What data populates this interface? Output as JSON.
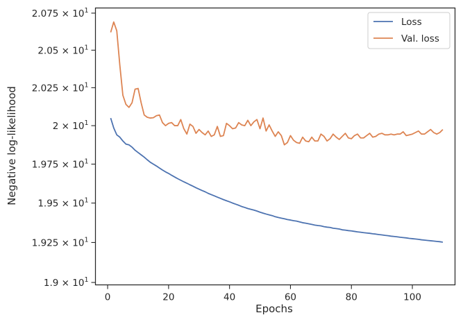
{
  "chart_data": {
    "type": "line",
    "title": "",
    "xlabel": "Epochs",
    "ylabel": "Negative log-likelihood",
    "xlim": [
      -4,
      114
    ],
    "ylim": [
      18.985,
      20.785
    ],
    "y_scale": "log",
    "grid": false,
    "legend_position": "top-right",
    "x_ticks": [
      {
        "value": 0,
        "label": "0"
      },
      {
        "value": 20,
        "label": "20"
      },
      {
        "value": 40,
        "label": "40"
      },
      {
        "value": 60,
        "label": "60"
      },
      {
        "value": 80,
        "label": "80"
      },
      {
        "value": 100,
        "label": "100"
      }
    ],
    "y_ticks": [
      {
        "value": 19.0,
        "mantissa": "1.9",
        "times": "×",
        "base": "10",
        "exponent": "1"
      },
      {
        "value": 19.25,
        "mantissa": "1.925",
        "times": "×",
        "base": "10",
        "exponent": "1"
      },
      {
        "value": 19.5,
        "mantissa": "1.95",
        "times": "×",
        "base": "10",
        "exponent": "1"
      },
      {
        "value": 19.75,
        "mantissa": "1.975",
        "times": "×",
        "base": "10",
        "exponent": "1"
      },
      {
        "value": 20.0,
        "mantissa": "2",
        "times": "×",
        "base": "10",
        "exponent": "1"
      },
      {
        "value": 20.25,
        "mantissa": "2.025",
        "times": "×",
        "base": "10",
        "exponent": "1"
      },
      {
        "value": 20.5,
        "mantissa": "2.05",
        "times": "×",
        "base": "10",
        "exponent": "1"
      },
      {
        "value": 20.75,
        "mantissa": "2.075",
        "times": "×",
        "base": "10",
        "exponent": "1"
      }
    ],
    "series": [
      {
        "name": "Loss",
        "color": "#4c72b0",
        "x": [
          1,
          2,
          3,
          4,
          5,
          6,
          7,
          8,
          9,
          10,
          11,
          12,
          13,
          14,
          15,
          16,
          17,
          18,
          19,
          20,
          21,
          22,
          23,
          24,
          25,
          26,
          27,
          28,
          29,
          30,
          31,
          32,
          33,
          34,
          35,
          36,
          37,
          38,
          39,
          40,
          41,
          42,
          43,
          44,
          45,
          46,
          47,
          48,
          49,
          50,
          51,
          52,
          53,
          54,
          55,
          56,
          57,
          58,
          59,
          60,
          61,
          62,
          63,
          64,
          65,
          66,
          67,
          68,
          69,
          70,
          71,
          72,
          73,
          74,
          75,
          76,
          77,
          78,
          79,
          80,
          81,
          82,
          83,
          84,
          85,
          86,
          87,
          88,
          89,
          90,
          91,
          92,
          93,
          94,
          95,
          96,
          97,
          98,
          99,
          100,
          101,
          102,
          103,
          104,
          105,
          106,
          107,
          108,
          109,
          110
        ],
        "y": [
          20.05,
          19.985,
          19.94,
          19.925,
          19.9,
          19.88,
          19.875,
          19.86,
          19.84,
          19.825,
          19.81,
          19.795,
          19.778,
          19.762,
          19.75,
          19.738,
          19.725,
          19.712,
          19.7,
          19.69,
          19.678,
          19.667,
          19.656,
          19.646,
          19.636,
          19.627,
          19.617,
          19.608,
          19.598,
          19.589,
          19.58,
          19.572,
          19.562,
          19.554,
          19.546,
          19.538,
          19.53,
          19.522,
          19.515,
          19.508,
          19.5,
          19.493,
          19.486,
          19.478,
          19.472,
          19.465,
          19.46,
          19.455,
          19.449,
          19.442,
          19.436,
          19.43,
          19.425,
          19.42,
          19.413,
          19.408,
          19.404,
          19.4,
          19.395,
          19.392,
          19.388,
          19.385,
          19.38,
          19.375,
          19.372,
          19.368,
          19.364,
          19.36,
          19.357,
          19.355,
          19.35,
          19.347,
          19.345,
          19.34,
          19.338,
          19.335,
          19.33,
          19.328,
          19.325,
          19.323,
          19.32,
          19.317,
          19.315,
          19.312,
          19.31,
          19.308,
          19.305,
          19.303,
          19.3,
          19.298,
          19.295,
          19.293,
          19.29,
          19.288,
          19.286,
          19.283,
          19.281,
          19.279,
          19.276,
          19.274,
          19.272,
          19.27,
          19.267,
          19.265,
          19.263,
          19.261,
          19.259,
          19.257,
          19.255,
          19.252
        ]
      },
      {
        "name": "Val. loss",
        "color": "#dd8452",
        "x": [
          1,
          2,
          3,
          4,
          5,
          6,
          7,
          8,
          9,
          10,
          11,
          12,
          13,
          14,
          15,
          16,
          17,
          18,
          19,
          20,
          21,
          22,
          23,
          24,
          25,
          26,
          27,
          28,
          29,
          30,
          31,
          32,
          33,
          34,
          35,
          36,
          37,
          38,
          39,
          40,
          41,
          42,
          43,
          44,
          45,
          46,
          47,
          48,
          49,
          50,
          51,
          52,
          53,
          54,
          55,
          56,
          57,
          58,
          59,
          60,
          61,
          62,
          63,
          64,
          65,
          66,
          67,
          68,
          69,
          70,
          71,
          72,
          73,
          74,
          75,
          76,
          77,
          78,
          79,
          80,
          81,
          82,
          83,
          84,
          85,
          86,
          87,
          88,
          89,
          90,
          91,
          92,
          93,
          94,
          95,
          96,
          97,
          98,
          99,
          100,
          101,
          102,
          103,
          104,
          105,
          106,
          107,
          108,
          109,
          110
        ],
        "y": [
          20.62,
          20.69,
          20.63,
          20.4,
          20.2,
          20.14,
          20.12,
          20.15,
          20.24,
          20.245,
          20.15,
          20.07,
          20.055,
          20.05,
          20.052,
          20.065,
          20.07,
          20.02,
          20.0,
          20.015,
          20.02,
          20.0,
          20.0,
          20.04,
          19.98,
          19.945,
          20.01,
          19.995,
          19.95,
          19.975,
          19.955,
          19.94,
          19.965,
          19.93,
          19.94,
          19.995,
          19.93,
          19.935,
          20.015,
          20.0,
          19.98,
          19.985,
          20.02,
          20.005,
          20.0,
          20.035,
          20.0,
          20.025,
          20.04,
          19.98,
          20.05,
          19.965,
          20.005,
          19.965,
          19.93,
          19.96,
          19.935,
          19.875,
          19.89,
          19.935,
          19.905,
          19.89,
          19.885,
          19.925,
          19.9,
          19.895,
          19.925,
          19.9,
          19.9,
          19.945,
          19.93,
          19.9,
          19.915,
          19.945,
          19.925,
          19.91,
          19.93,
          19.95,
          19.92,
          19.915,
          19.935,
          19.945,
          19.92,
          19.92,
          19.935,
          19.95,
          19.925,
          19.93,
          19.945,
          19.95,
          19.94,
          19.94,
          19.945,
          19.94,
          19.945,
          19.945,
          19.96,
          19.935,
          19.94,
          19.945,
          19.955,
          19.965,
          19.945,
          19.945,
          19.96,
          19.975,
          19.955,
          19.945,
          19.955,
          19.975
        ]
      }
    ]
  }
}
